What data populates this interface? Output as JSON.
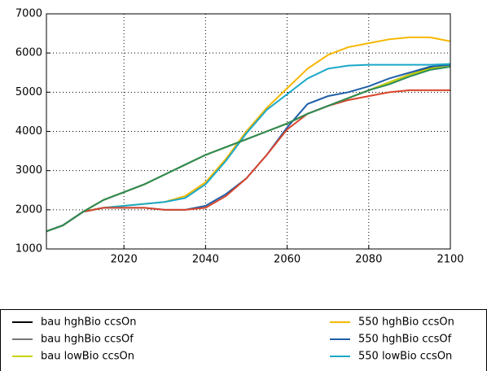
{
  "chart_data": {
    "type": "line",
    "x": [
      2001,
      2005,
      2010,
      2015,
      2020,
      2025,
      2030,
      2035,
      2040,
      2045,
      2050,
      2055,
      2060,
      2065,
      2070,
      2075,
      2080,
      2085,
      2090,
      2095,
      2100
    ],
    "series": [
      {
        "name": "bau hghBio ccsOn",
        "color": "#000000",
        "values": [
          1450,
          1600,
          1950,
          2250,
          2450,
          2650,
          2900,
          3150,
          3400,
          3600,
          3800,
          4000,
          4200,
          4450,
          4650,
          4850,
          5050,
          5250,
          5450,
          5620,
          5720
        ]
      },
      {
        "name": "bau hghBio ccsOf",
        "color": "#777777",
        "values": [
          1450,
          1600,
          1950,
          2250,
          2450,
          2650,
          2900,
          3150,
          3400,
          3600,
          3800,
          4000,
          4200,
          4450,
          4650,
          4850,
          5050,
          5250,
          5450,
          5600,
          5700
        ]
      },
      {
        "name": "bau lowBio ccsOn",
        "color": "#c8d400",
        "values": [
          1450,
          1600,
          1950,
          2250,
          2450,
          2650,
          2900,
          3150,
          3400,
          3600,
          3800,
          4000,
          4200,
          4450,
          4650,
          4850,
          5050,
          5250,
          5450,
          5600,
          5700
        ]
      },
      {
        "name": "550 hghBio ccsOn",
        "color": "#f5b700",
        "values": [
          1450,
          1600,
          1950,
          2050,
          2100,
          2150,
          2200,
          2350,
          2700,
          3300,
          4000,
          4600,
          5100,
          5600,
          5950,
          6150,
          6250,
          6350,
          6400,
          6400,
          6300
        ]
      },
      {
        "name": "550 hghBio ccsOf",
        "color": "#1f5fa8",
        "values": [
          1450,
          1600,
          1950,
          2050,
          2050,
          2050,
          2000,
          2000,
          2100,
          2400,
          2800,
          3400,
          4100,
          4700,
          4900,
          5000,
          5150,
          5350,
          5500,
          5650,
          5700
        ]
      },
      {
        "name": "550 lowBio ccsOn",
        "color": "#1aa8c8",
        "values": [
          1450,
          1600,
          1950,
          2050,
          2100,
          2150,
          2200,
          2300,
          2650,
          3250,
          3950,
          4550,
          4950,
          5350,
          5600,
          5680,
          5700,
          5700,
          5700,
          5700,
          5720
        ]
      },
      {
        "color": "#d9452b",
        "values": [
          1450,
          1600,
          1950,
          2050,
          2050,
          2050,
          2000,
          2000,
          2050,
          2350,
          2800,
          3400,
          4050,
          4450,
          4650,
          4800,
          4900,
          5000,
          5050,
          5050,
          5050
        ]
      },
      {
        "color": "#2e8b57",
        "values": [
          1450,
          1600,
          1950,
          2250,
          2450,
          2650,
          2900,
          3150,
          3400,
          3600,
          3800,
          4000,
          4200,
          4450,
          4650,
          4850,
          5050,
          5200,
          5400,
          5570,
          5650
        ]
      }
    ],
    "xlim": [
      2001,
      2100
    ],
    "ylim": [
      1000,
      7000
    ],
    "xticks": [
      2020,
      2040,
      2060,
      2080,
      2100
    ],
    "yticks": [
      1000,
      2000,
      3000,
      4000,
      5000,
      6000,
      7000
    ],
    "grid": true
  }
}
